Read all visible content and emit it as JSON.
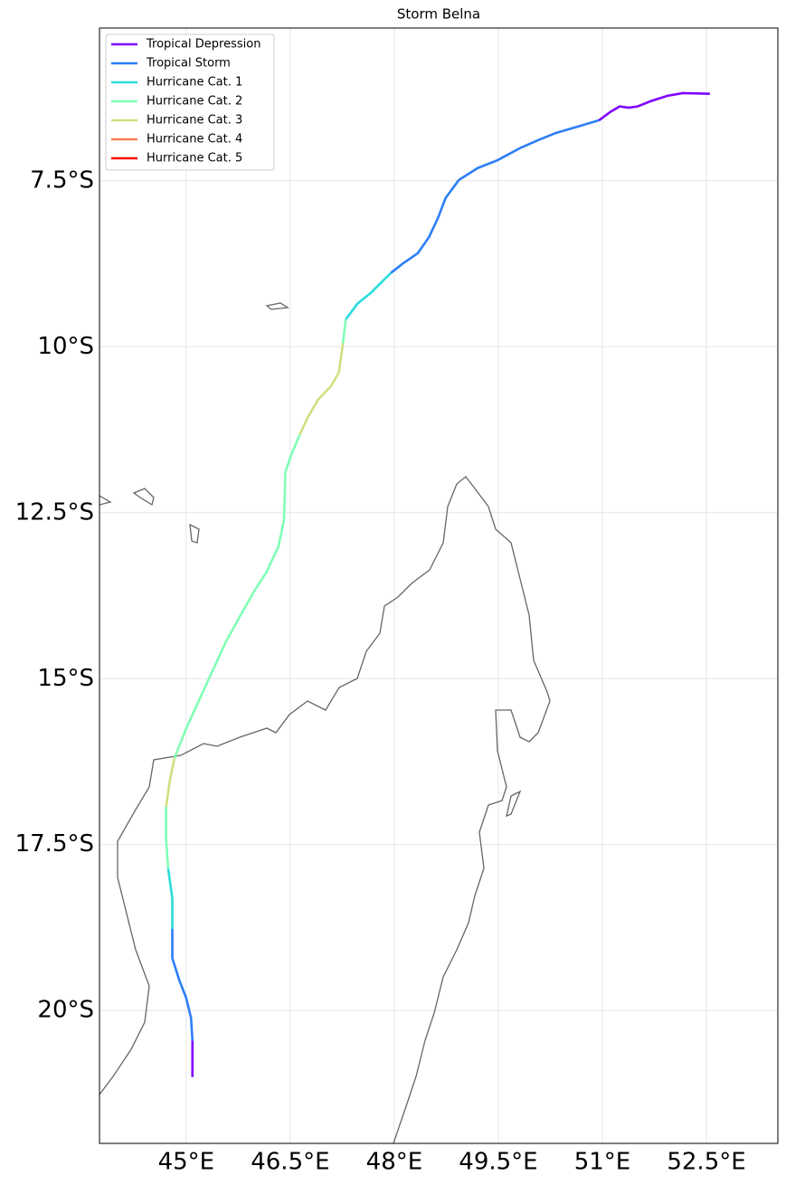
{
  "chart_data": {
    "type": "line",
    "title": "Storm Belna",
    "xlim": [
      43.75,
      53.53
    ],
    "ylim": [
      -22.0,
      -5.2
    ],
    "xticks": [
      {
        "value": 45,
        "label": "45°E"
      },
      {
        "value": 46.5,
        "label": "46.5°E"
      },
      {
        "value": 48,
        "label": "48°E"
      },
      {
        "value": 49.5,
        "label": "49.5°E"
      },
      {
        "value": 51,
        "label": "51°E"
      },
      {
        "value": 52.5,
        "label": "52.5°E"
      }
    ],
    "yticks": [
      {
        "value": -7.5,
        "label": "7.5°S"
      },
      {
        "value": -10,
        "label": "10°S"
      },
      {
        "value": -12.5,
        "label": "12.5°S"
      },
      {
        "value": -15,
        "label": "15°S"
      },
      {
        "value": -17.5,
        "label": "17.5°S"
      },
      {
        "value": -20,
        "label": "20°S"
      }
    ],
    "grid": true,
    "legend": "upper left",
    "series": [
      {
        "name": "Tropical Depression",
        "color": "#7f00ff",
        "x": [
          52.55,
          52.16,
          51.94,
          51.7,
          51.51,
          51.38,
          51.25,
          51.12,
          50.95,
          null,
          45.09,
          45.09
        ],
        "values": [
          -6.19,
          -6.18,
          -6.22,
          -6.3,
          -6.38,
          -6.4,
          -6.38,
          -6.46,
          -6.59,
          null,
          -20.45,
          -21.0
        ]
      },
      {
        "name": "Tropical Storm",
        "color": "#2c7ef7",
        "x": [
          50.95,
          50.66,
          50.33,
          50.07,
          49.81,
          49.49,
          49.2,
          48.93,
          48.74,
          48.63,
          48.5,
          48.34,
          48.12,
          47.95,
          null,
          44.8,
          44.8,
          44.9,
          45.0,
          45.07,
          45.09
        ],
        "values": [
          -6.59,
          -6.68,
          -6.78,
          -6.89,
          -7.01,
          -7.19,
          -7.31,
          -7.49,
          -7.76,
          -8.06,
          -8.35,
          -8.59,
          -8.75,
          -8.89,
          null,
          -18.77,
          -19.21,
          -19.54,
          -19.81,
          -20.11,
          -20.45
        ]
      },
      {
        "name": "Hurricane Cat. 1",
        "color": "#2adddd",
        "x": [
          47.95,
          47.66,
          47.47,
          47.3,
          null,
          44.74,
          44.8,
          44.8
        ],
        "values": [
          -8.89,
          -9.19,
          -9.35,
          -9.59,
          null,
          -17.86,
          -18.31,
          -18.77
        ]
      },
      {
        "name": "Hurricane Cat. 2",
        "color": "#80ffb4",
        "x": [
          47.3,
          47.26,
          null,
          46.64,
          46.51,
          46.43,
          46.42,
          46.41,
          46.33,
          46.16,
          45.97,
          45.77,
          45.57,
          45.39,
          45.21,
          45.0,
          44.83,
          null,
          44.71,
          44.71,
          44.74
        ],
        "values": [
          -9.59,
          -9.95,
          null,
          -11.32,
          -11.64,
          -11.89,
          -12.27,
          -12.61,
          -13.01,
          -13.39,
          -13.7,
          -14.07,
          -14.45,
          -14.86,
          -15.27,
          -15.75,
          -16.2,
          null,
          -16.93,
          -17.41,
          -17.86
        ]
      },
      {
        "name": "Hurricane Cat. 3",
        "color": "#d4dd80",
        "x": [
          47.26,
          47.2,
          47.09,
          46.9,
          46.75,
          46.64,
          null,
          44.83,
          44.77,
          44.71
        ],
        "values": [
          -9.95,
          -10.39,
          -10.59,
          -10.8,
          -11.07,
          -11.32,
          null,
          -16.2,
          -16.5,
          -16.93
        ]
      },
      {
        "name": "Hurricane Cat. 4",
        "color": "#ff7f4e",
        "x": [],
        "values": []
      },
      {
        "name": "Hurricane Cat. 5",
        "color": "#ff0000",
        "x": [],
        "values": []
      }
    ]
  }
}
